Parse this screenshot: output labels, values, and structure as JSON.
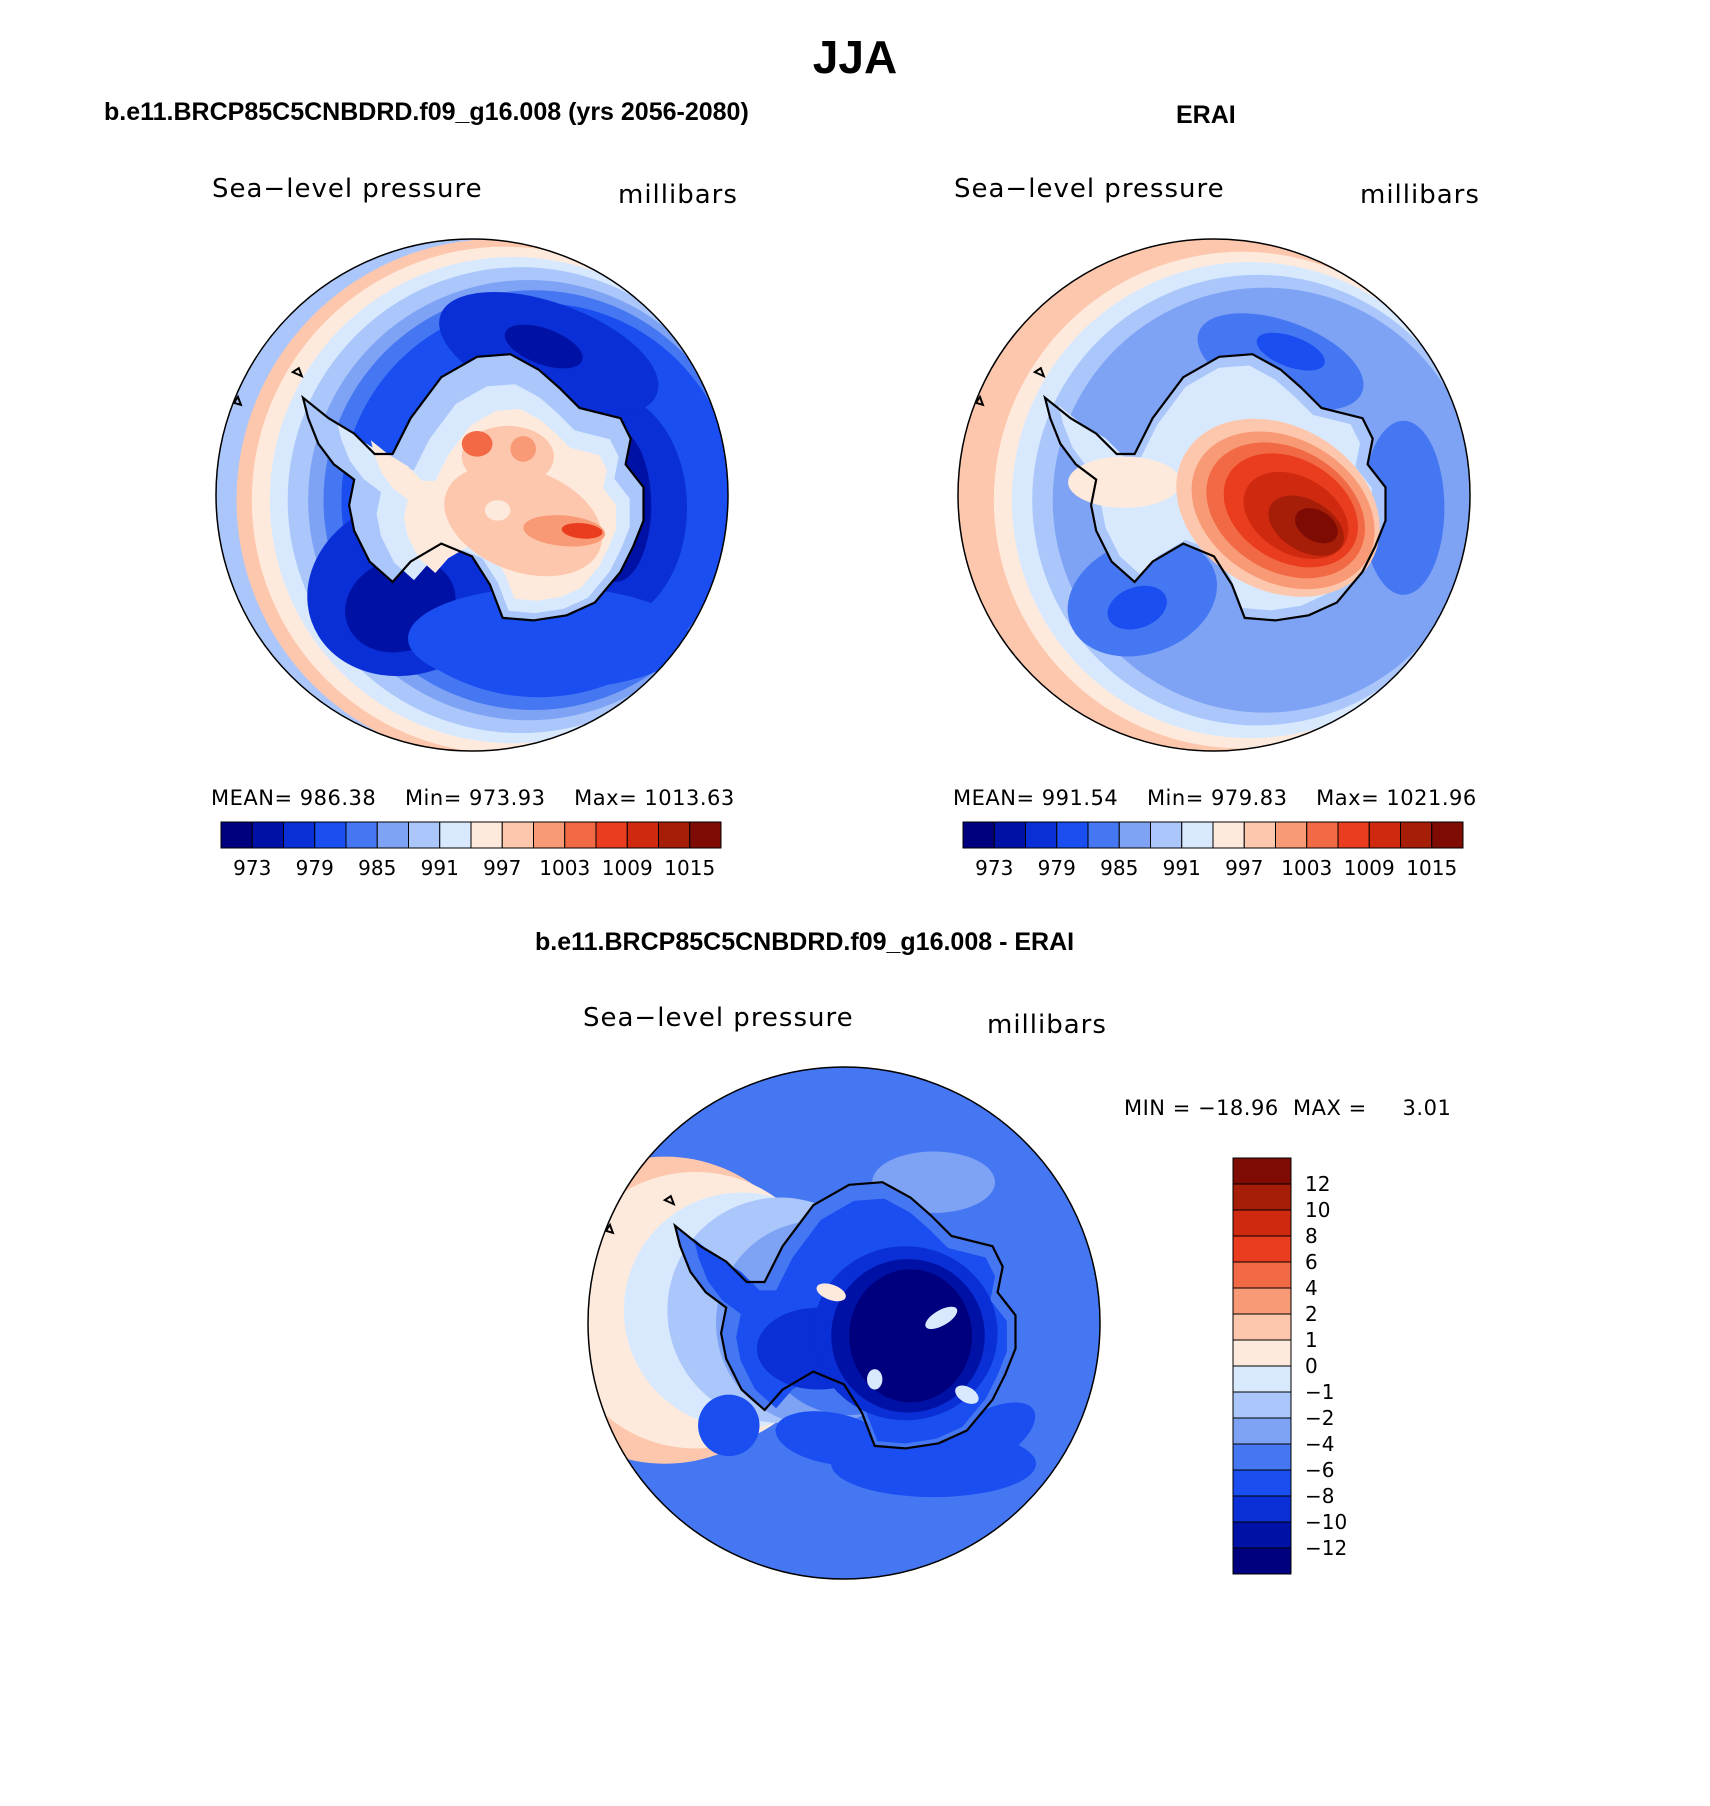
{
  "title": "JJA",
  "colors": {
    "scale": [
      "#00007f",
      "#0012a6",
      "#0a2fd6",
      "#1a4ef0",
      "#4677f2",
      "#7ea3f5",
      "#aac6fa",
      "#d9e9fd",
      "#feeadc",
      "#fdc7ad",
      "#f99a76",
      "#f26a45",
      "#ea3c1e",
      "#cf2a10",
      "#a61d08",
      "#7e0b04"
    ],
    "ocean_outline": "#000000"
  },
  "panels": {
    "model": {
      "title": "b.e11.BRCP85C5CNBDRD.f09_g16.008 (yrs 2056-2080)",
      "var_label": "Sea−level pressure",
      "units": "millibars",
      "stats": {
        "mean_label": "MEAN=",
        "mean": "986.38",
        "min_label": "Min=",
        "min": "973.93",
        "max_label": "Max=",
        "max": "1013.63"
      }
    },
    "obs": {
      "title": "ERAI",
      "var_label": "Sea−level pressure",
      "units": "millibars",
      "stats": {
        "mean_label": "MEAN=",
        "mean": "991.54",
        "min_label": "Min=",
        "min": "979.83",
        "max_label": "Max=",
        "max": "1021.96"
      }
    },
    "diff": {
      "title": "b.e11.BRCP85C5CNBDRD.f09_g16.008 - ERAI",
      "var_label": "Sea−level pressure",
      "units": "millibars",
      "minmax": "MIN = −18.96  MAX =     3.01"
    }
  },
  "chart_data": [
    {
      "type": "heatmap",
      "name": "model",
      "title": "b.e11.BRCP85C5CNBDRD.f09_g16.008 (yrs 2056-2080)",
      "projection": "south polar stereographic",
      "field": "Sea-level pressure",
      "units": "millibars",
      "mean": 986.38,
      "min": 973.93,
      "max": 1013.63,
      "colorbar_ticks": [
        "973",
        "979",
        "985",
        "991",
        "997",
        "1003",
        "1009",
        "1015"
      ],
      "contour_levels": [
        970,
        973,
        976,
        979,
        982,
        985,
        988,
        991,
        994,
        997,
        1000,
        1003,
        1006,
        1009,
        1012,
        1015
      ]
    },
    {
      "type": "heatmap",
      "name": "obs",
      "title": "ERAI",
      "projection": "south polar stereographic",
      "field": "Sea-level pressure",
      "units": "millibars",
      "mean": 991.54,
      "min": 979.83,
      "max": 1021.96,
      "colorbar_ticks": [
        "973",
        "979",
        "985",
        "991",
        "997",
        "1003",
        "1009",
        "1015"
      ],
      "contour_levels": [
        970,
        973,
        976,
        979,
        982,
        985,
        988,
        991,
        994,
        997,
        1000,
        1003,
        1006,
        1009,
        1012,
        1015
      ]
    },
    {
      "type": "heatmap",
      "name": "diff",
      "title": "b.e11.BRCP85C5CNBDRD.f09_g16.008 - ERAI",
      "projection": "south polar stereographic",
      "field": "Sea-level pressure",
      "units": "millibars",
      "min": -18.96,
      "max": 3.01,
      "colorbar_ticks": [
        "12",
        "10",
        "8",
        "6",
        "4",
        "2",
        "1",
        "0",
        "−1",
        "−2",
        "−4",
        "−6",
        "−8",
        "−10",
        "−12"
      ]
    }
  ]
}
